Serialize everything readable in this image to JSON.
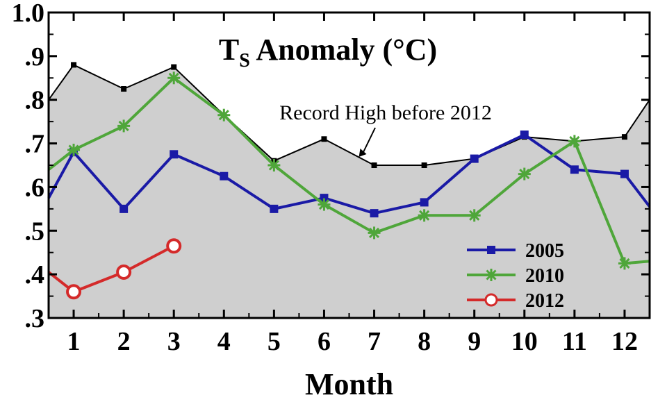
{
  "chart_data": {
    "type": "line",
    "title": "T",
    "title_subscript": "S",
    "title_suffix": " Anomaly (°C)",
    "xlabel": "Month",
    "ylabel": "",
    "x": [
      0.5,
      1,
      2,
      3,
      4,
      5,
      6,
      7,
      8,
      9,
      10,
      11,
      12,
      12.5
    ],
    "xlim": [
      0.5,
      12.5
    ],
    "ylim": [
      0.3,
      1.0
    ],
    "xtick_labels": [
      "1",
      "2",
      "3",
      "4",
      "5",
      "6",
      "7",
      "8",
      "9",
      "10",
      "11",
      "12"
    ],
    "ytick_labels": [
      ".3",
      ".4",
      ".5",
      ".6",
      ".7",
      ".8",
      ".9",
      "1.0"
    ],
    "ytick_values": [
      0.3,
      0.4,
      0.5,
      0.6,
      0.7,
      0.8,
      0.9,
      1.0
    ],
    "record_high": {
      "values": [
        0.8,
        0.88,
        0.825,
        0.875,
        0.765,
        0.66,
        0.71,
        0.65,
        0.65,
        0.665,
        0.715,
        0.705,
        0.715,
        0.8
      ],
      "annotation": "Record High before 2012",
      "annotation_x": 7,
      "color": "#000000",
      "fill": "#cfcfcf"
    },
    "series": [
      {
        "name": "2005",
        "color": "#1a1aa6",
        "marker": "square",
        "values": [
          0.575,
          0.68,
          0.55,
          0.675,
          0.625,
          0.55,
          0.575,
          0.54,
          0.565,
          0.665,
          0.72,
          0.64,
          0.63,
          0.555
        ]
      },
      {
        "name": "2010",
        "color": "#4fa63a",
        "marker": "star",
        "values": [
          0.64,
          0.685,
          0.74,
          0.85,
          0.765,
          0.65,
          0.56,
          0.495,
          0.535,
          0.535,
          0.63,
          0.705,
          0.425,
          0.43
        ]
      },
      {
        "name": "2012",
        "color": "#d42a2a",
        "marker": "circle-open",
        "x": [
          0.5,
          1,
          2,
          3
        ],
        "values": [
          0.405,
          0.36,
          0.405,
          0.465
        ]
      }
    ],
    "legend_position": "bottom-right",
    "grid": false,
    "background": "#cfcfcf"
  }
}
